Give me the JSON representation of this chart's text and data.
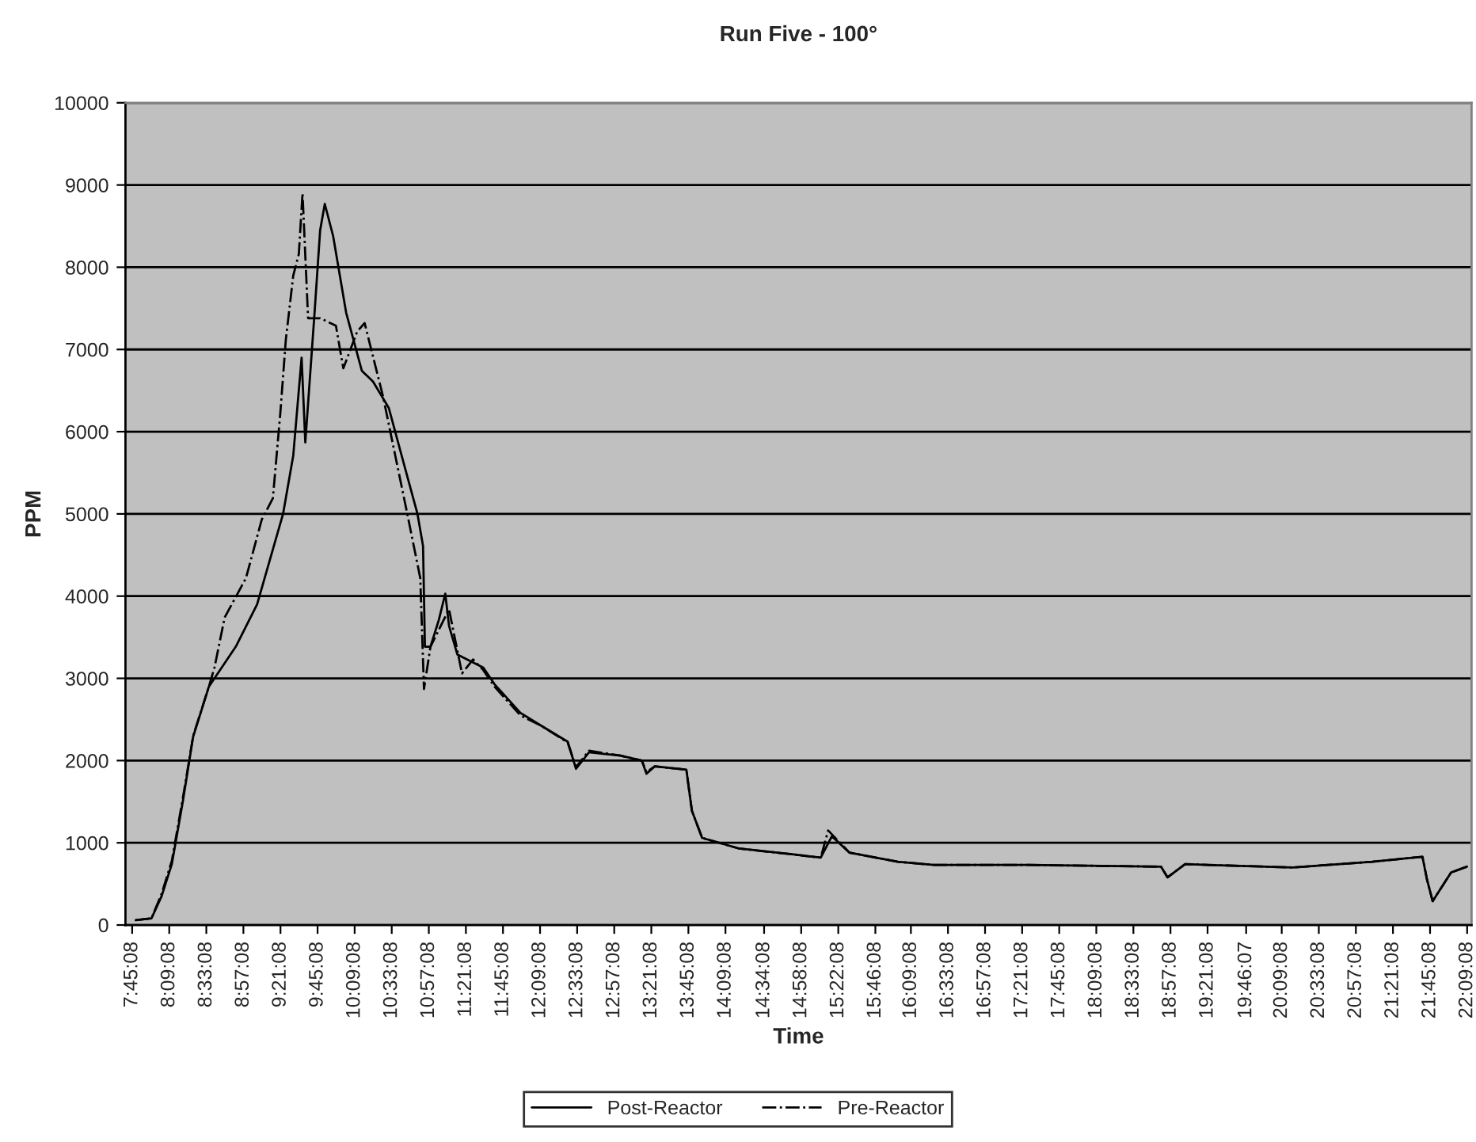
{
  "chart_data": {
    "type": "line",
    "title": "Run Five - 100°",
    "xlabel": "Time",
    "ylabel": "PPM",
    "xlim": [
      7.68,
      22.2
    ],
    "ylim": [
      0,
      10000
    ],
    "yticks": [
      0,
      1000,
      2000,
      3000,
      4000,
      5000,
      6000,
      7000,
      8000,
      9000,
      10000
    ],
    "xticks": [
      {
        "value": 7.7522,
        "label": "7:45:08"
      },
      {
        "value": 8.1522,
        "label": "8:09:08"
      },
      {
        "value": 8.5522,
        "label": "8:33:08"
      },
      {
        "value": 8.9522,
        "label": "8:57:08"
      },
      {
        "value": 9.3522,
        "label": "9:21:08"
      },
      {
        "value": 9.7522,
        "label": "9:45:08"
      },
      {
        "value": 10.1522,
        "label": "10:09:08"
      },
      {
        "value": 10.5522,
        "label": "10:33:08"
      },
      {
        "value": 10.9522,
        "label": "10:57:08"
      },
      {
        "value": 11.3522,
        "label": "11:21:08"
      },
      {
        "value": 11.7522,
        "label": "11:45:08"
      },
      {
        "value": 12.1522,
        "label": "12:09:08"
      },
      {
        "value": 12.5522,
        "label": "12:33:08"
      },
      {
        "value": 12.9522,
        "label": "12:57:08"
      },
      {
        "value": 13.3522,
        "label": "13:21:08"
      },
      {
        "value": 13.7522,
        "label": "13:45:08"
      },
      {
        "value": 14.1522,
        "label": "14:09:08"
      },
      {
        "value": 14.5689,
        "label": "14:34:08"
      },
      {
        "value": 14.9689,
        "label": "14:58:08"
      },
      {
        "value": 15.3689,
        "label": "15:22:08"
      },
      {
        "value": 15.7689,
        "label": "15:46:08"
      },
      {
        "value": 16.1522,
        "label": "16:09:08"
      },
      {
        "value": 16.5522,
        "label": "16:33:08"
      },
      {
        "value": 16.9522,
        "label": "16:57:08"
      },
      {
        "value": 17.3522,
        "label": "17:21:08"
      },
      {
        "value": 17.7522,
        "label": "17:45:08"
      },
      {
        "value": 18.1522,
        "label": "18:09:08"
      },
      {
        "value": 18.5522,
        "label": "18:33:08"
      },
      {
        "value": 18.9522,
        "label": "18:57:08"
      },
      {
        "value": 19.3522,
        "label": "19:21:08"
      },
      {
        "value": 19.7686,
        "label": "19:46:07"
      },
      {
        "value": 20.1522,
        "label": "20:09:08"
      },
      {
        "value": 20.5522,
        "label": "20:33:08"
      },
      {
        "value": 20.9522,
        "label": "20:57:08"
      },
      {
        "value": 21.3522,
        "label": "21:21:08"
      },
      {
        "value": 21.7522,
        "label": "21:45:08"
      },
      {
        "value": 22.1522,
        "label": "22:09:08"
      }
    ],
    "grid": "y",
    "legend": "bottom",
    "marker": "none",
    "series": [
      {
        "name": "Post-Reactor",
        "color": "#000000",
        "line_style": "solid",
        "x": [
          7.79,
          7.96,
          8.07,
          8.18,
          8.3,
          8.41,
          8.58,
          8.87,
          9.1,
          9.38,
          9.49,
          9.58,
          9.62,
          9.72,
          9.78,
          9.83,
          9.92,
          10.06,
          10.23,
          10.35,
          10.52,
          10.69,
          10.83,
          10.89,
          10.91,
          10.97,
          11.06,
          11.13,
          11.17,
          11.26,
          11.54,
          11.66,
          11.94,
          12.17,
          12.45,
          12.54,
          12.68,
          13.02,
          13.25,
          13.3,
          13.39,
          13.73,
          13.79,
          13.9,
          14.3,
          14.87,
          15.18,
          15.3,
          15.49,
          16.01,
          16.4,
          17.43,
          18.85,
          18.92,
          19.11,
          20.27,
          21.13,
          21.67,
          21.72,
          21.78,
          21.98,
          22.15
        ],
        "values": [
          60,
          80,
          350,
          740,
          1510,
          2290,
          2900,
          3385,
          3900,
          5000,
          5710,
          6900,
          5870,
          7450,
          8450,
          8770,
          8380,
          7450,
          6740,
          6610,
          6290,
          5580,
          5000,
          4610,
          3385,
          3385,
          3710,
          4030,
          3640,
          3290,
          3130,
          2930,
          2580,
          2420,
          2230,
          1900,
          2100,
          2060,
          2000,
          1840,
          1930,
          1890,
          1390,
          1060,
          930,
          860,
          820,
          1080,
          880,
          770,
          730,
          730,
          710,
          580,
          740,
          700,
          770,
          830,
          550,
          290,
          640,
          710
        ]
      },
      {
        "name": "Pre-Reactor",
        "color": "#000000",
        "line_style": "dashdot",
        "x": [
          7.79,
          7.96,
          8.07,
          8.18,
          8.3,
          8.41,
          8.58,
          8.64,
          8.75,
          8.98,
          9.15,
          9.27,
          9.35,
          9.41,
          9.49,
          9.55,
          9.59,
          9.65,
          9.78,
          9.95,
          10.03,
          10.18,
          10.26,
          10.46,
          10.72,
          10.86,
          10.9,
          10.97,
          11.17,
          11.31,
          11.43,
          11.54,
          11.66,
          11.94,
          12.17,
          12.45,
          12.54,
          12.68,
          13.02,
          13.25,
          13.3,
          13.39,
          13.73,
          13.79,
          13.9,
          14.3,
          14.87,
          15.18,
          15.26,
          15.49,
          16.01,
          16.4,
          17.43,
          18.85,
          18.92,
          19.11,
          20.27,
          21.13,
          21.67,
          21.72,
          21.78,
          21.98,
          22.15
        ],
        "values": [
          60,
          80,
          380,
          780,
          1550,
          2300,
          2900,
          3130,
          3740,
          4220,
          4930,
          5190,
          6220,
          7120,
          7900,
          8160,
          8900,
          7380,
          7380,
          7290,
          6770,
          7220,
          7320,
          6420,
          5000,
          4220,
          2870,
          3385,
          3840,
          3060,
          3230,
          3100,
          2900,
          2550,
          2420,
          2220,
          1920,
          2120,
          2060,
          2000,
          1860,
          1930,
          1890,
          1390,
          1060,
          930,
          860,
          820,
          1150,
          880,
          770,
          730,
          730,
          710,
          580,
          740,
          700,
          770,
          830,
          550,
          290,
          640,
          710
        ]
      }
    ]
  }
}
